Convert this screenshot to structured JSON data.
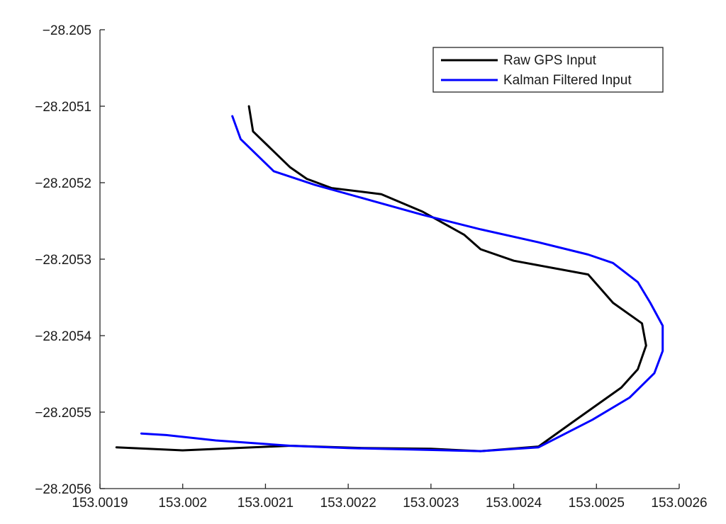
{
  "chart_data": {
    "type": "line",
    "title": "",
    "xlabel": "",
    "ylabel": "",
    "xlim": [
      153.0019,
      153.0026
    ],
    "ylim": [
      -28.2056,
      -28.205
    ],
    "x_ticks": [
      153.0019,
      153.002,
      153.0021,
      153.0022,
      153.0023,
      153.0024,
      153.0025,
      153.0026
    ],
    "x_tick_labels": [
      "153.0019",
      "153.002",
      "153.0021",
      "153.0022",
      "153.0023",
      "153.0024",
      "153.0025",
      "153.0026"
    ],
    "y_ticks": [
      -28.205,
      -28.2051,
      -28.2052,
      -28.2053,
      -28.2054,
      -28.2055,
      -28.2056
    ],
    "y_tick_labels": [
      "−28.205",
      "−28.2051",
      "−28.2052",
      "−28.2053",
      "−28.2054",
      "−28.2055",
      "−28.2056"
    ],
    "grid": false,
    "legend_position": "top-right",
    "series": [
      {
        "name": "Raw GPS Input",
        "color": "#000000",
        "points": [
          [
            153.00208,
            -28.2051
          ],
          [
            153.002085,
            -28.205133
          ],
          [
            153.00213,
            -28.20518
          ],
          [
            153.00215,
            -28.205195
          ],
          [
            153.00218,
            -28.205207
          ],
          [
            153.00224,
            -28.205215
          ],
          [
            153.00229,
            -28.205238
          ],
          [
            153.00234,
            -28.205268
          ],
          [
            153.00236,
            -28.205287
          ],
          [
            153.0024,
            -28.205302
          ],
          [
            153.00245,
            -28.205312
          ],
          [
            153.00249,
            -28.20532
          ],
          [
            153.00252,
            -28.205357
          ],
          [
            153.002555,
            -28.205384
          ],
          [
            153.00256,
            -28.205413
          ],
          [
            153.00255,
            -28.205444
          ],
          [
            153.00253,
            -28.205468
          ],
          [
            153.00247,
            -28.205514
          ],
          [
            153.00243,
            -28.205545
          ],
          [
            153.00236,
            -28.205551
          ],
          [
            153.0023,
            -28.205548
          ],
          [
            153.00222,
            -28.205547
          ],
          [
            153.00213,
            -28.205544
          ],
          [
            153.002,
            -28.20555
          ],
          [
            153.00192,
            -28.205546
          ]
        ]
      },
      {
        "name": "Kalman Filtered Input",
        "color": "#0000ff",
        "points": [
          [
            153.00206,
            -28.205113
          ],
          [
            153.00207,
            -28.205143
          ],
          [
            153.00211,
            -28.205185
          ],
          [
            153.00216,
            -28.205203
          ],
          [
            153.00223,
            -28.205224
          ],
          [
            153.00229,
            -28.205242
          ],
          [
            153.00236,
            -28.205261
          ],
          [
            153.00243,
            -28.205278
          ],
          [
            153.00249,
            -28.205294
          ],
          [
            153.00252,
            -28.205305
          ],
          [
            153.00255,
            -28.20533
          ],
          [
            153.002565,
            -28.205357
          ],
          [
            153.00258,
            -28.205387
          ],
          [
            153.00258,
            -28.20542
          ],
          [
            153.00257,
            -28.205449
          ],
          [
            153.00254,
            -28.205481
          ],
          [
            153.002495,
            -28.20551
          ],
          [
            153.00243,
            -28.205546
          ],
          [
            153.00236,
            -28.205551
          ],
          [
            153.00228,
            -28.205549
          ],
          [
            153.0022,
            -28.205547
          ],
          [
            153.00213,
            -28.205544
          ],
          [
            153.00204,
            -28.205537
          ],
          [
            153.00198,
            -28.20553
          ],
          [
            153.00195,
            -28.205528
          ]
        ]
      }
    ]
  }
}
